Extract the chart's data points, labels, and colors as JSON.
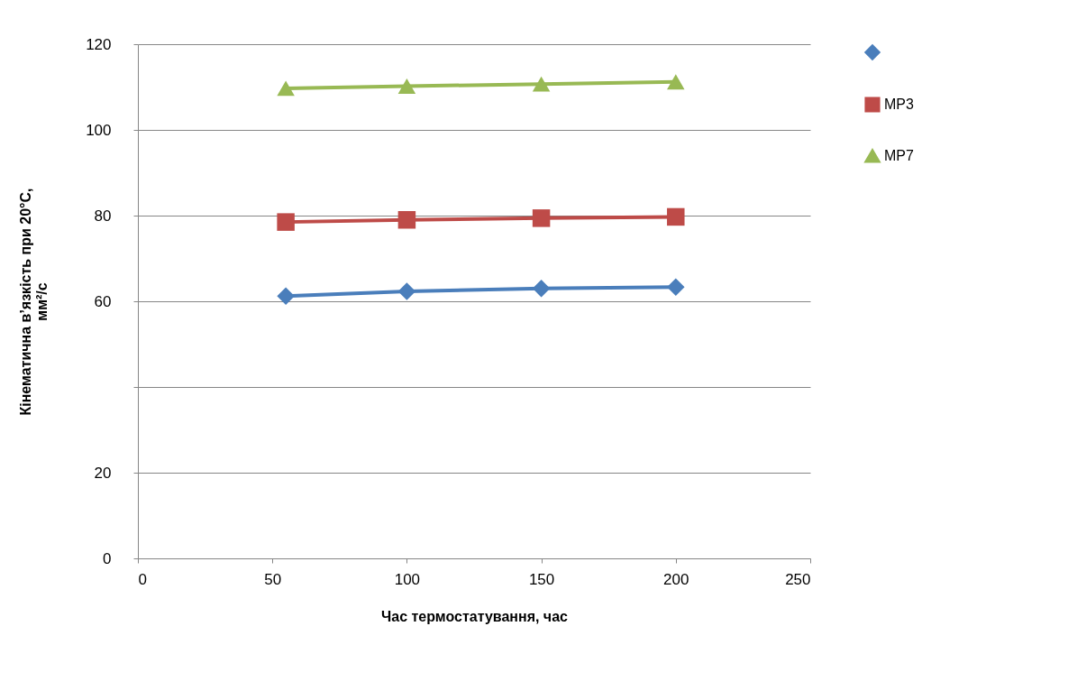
{
  "chart_data": {
    "type": "line",
    "xlabel": "Час термостатування, час",
    "ylabel": "Кінематична в’язкість при 20°С,\nмм²/с",
    "x": [
      55,
      100,
      150,
      200
    ],
    "series": [
      {
        "color": "#4a7ebb",
        "marker": "diamond",
        "values": [
          61.2,
          62.3,
          63.0,
          63.3
        ]
      },
      {
        "name": "МР3",
        "color": "#be4b48",
        "marker": "square",
        "values": [
          78.5,
          79.0,
          79.4,
          79.7
        ]
      },
      {
        "name": "МР7",
        "color": "#98b954",
        "marker": "triangle",
        "values": [
          109.7,
          110.2,
          110.7,
          111.2
        ]
      }
    ],
    "xlim": [
      0,
      250
    ],
    "xticks": [
      0,
      50,
      100,
      150,
      200,
      250
    ],
    "ylim": [
      0,
      120
    ],
    "yticks": [
      0,
      20,
      {
        "value": 40,
        "label": null
      },
      60,
      80,
      100,
      120
    ],
    "grid": "y",
    "legend": "right",
    "line_style": "solid"
  }
}
